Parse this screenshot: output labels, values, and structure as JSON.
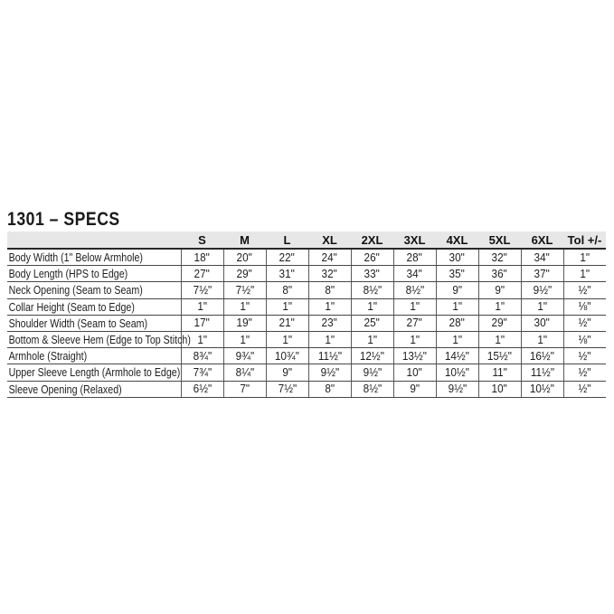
{
  "title": "1301 – SPECS",
  "table": {
    "size_columns": [
      "S",
      "M",
      "L",
      "XL",
      "2XL",
      "3XL",
      "4XL",
      "5XL",
      "6XL",
      "Tol +/-"
    ],
    "rows": [
      {
        "label": "Body Width (1\" Below Armhole)",
        "values": [
          "18\"",
          "20\"",
          "22\"",
          "24\"",
          "26\"",
          "28\"",
          "30\"",
          "32\"",
          "34\"",
          "1\""
        ]
      },
      {
        "label": "Body Length (HPS to Edge)",
        "values": [
          "27\"",
          "29\"",
          "31\"",
          "32\"",
          "33\"",
          "34\"",
          "35\"",
          "36\"",
          "37\"",
          "1\""
        ]
      },
      {
        "label": "Neck Opening (Seam to Seam)",
        "values": [
          "7½\"",
          "7½\"",
          "8\"",
          "8\"",
          "8½\"",
          "8½\"",
          "9\"",
          "9\"",
          "9½\"",
          "½\""
        ]
      },
      {
        "label": "Collar Height (Seam to Edge)",
        "values": [
          "1\"",
          "1\"",
          "1\"",
          "1\"",
          "1\"",
          "1\"",
          "1\"",
          "1\"",
          "1\"",
          "⅛\""
        ]
      },
      {
        "label": "Shoulder Width (Seam to Seam)",
        "values": [
          "17\"",
          "19\"",
          "21\"",
          "23\"",
          "25\"",
          "27\"",
          "28\"",
          "29\"",
          "30\"",
          "½\""
        ]
      },
      {
        "label": "Bottom & Sleeve Hem (Edge to Top Stitch)",
        "values": [
          "1\"",
          "1\"",
          "1\"",
          "1\"",
          "1\"",
          "1\"",
          "1\"",
          "1\"",
          "1\"",
          "⅛\""
        ]
      },
      {
        "label": "Armhole (Straight)",
        "values": [
          "8¾\"",
          "9¾\"",
          "10¾\"",
          "11½\"",
          "12½\"",
          "13½\"",
          "14½\"",
          "15½\"",
          "16½\"",
          "½\""
        ]
      },
      {
        "label": "Upper Sleeve Length (Armhole to Edge)",
        "values": [
          "7¾\"",
          "8¼\"",
          "9\"",
          "9½\"",
          "9½\"",
          "10\"",
          "10½\"",
          "11\"",
          "11½\"",
          "½\""
        ]
      },
      {
        "label": "Sleeve Opening (Relaxed)",
        "values": [
          "6½\"",
          "7\"",
          "7½\"",
          "8\"",
          "8½\"",
          "9\"",
          "9½\"",
          "10\"",
          "10½\"",
          "½\""
        ]
      }
    ]
  }
}
